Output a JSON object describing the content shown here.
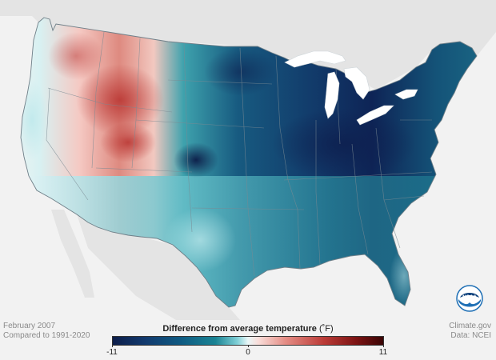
{
  "map": {
    "period": "February 2007",
    "baseline": "Compared to 1991-2020",
    "variable": "Difference from average temperature",
    "unit": "(˚F)",
    "scale_min": "-11",
    "scale_mid": "0",
    "scale_max": "11",
    "source_site": "Climate.gov",
    "source_data": "Data: NCEI",
    "logo_text": "NOAA",
    "colors": {
      "land_bg": "#e4e4e4",
      "ocean": "#f2f2f2",
      "lakes": "#ffffff",
      "cold_extreme": "#0d1e4a",
      "cold": "#0f5a82",
      "cool": "#1a8494",
      "neutral": "#e9f7f8",
      "warm": "#e48c84",
      "hot": "#bb3b37",
      "warm_extreme": "#3a0505",
      "noaa_blue": "#1e6fb5"
    }
  }
}
